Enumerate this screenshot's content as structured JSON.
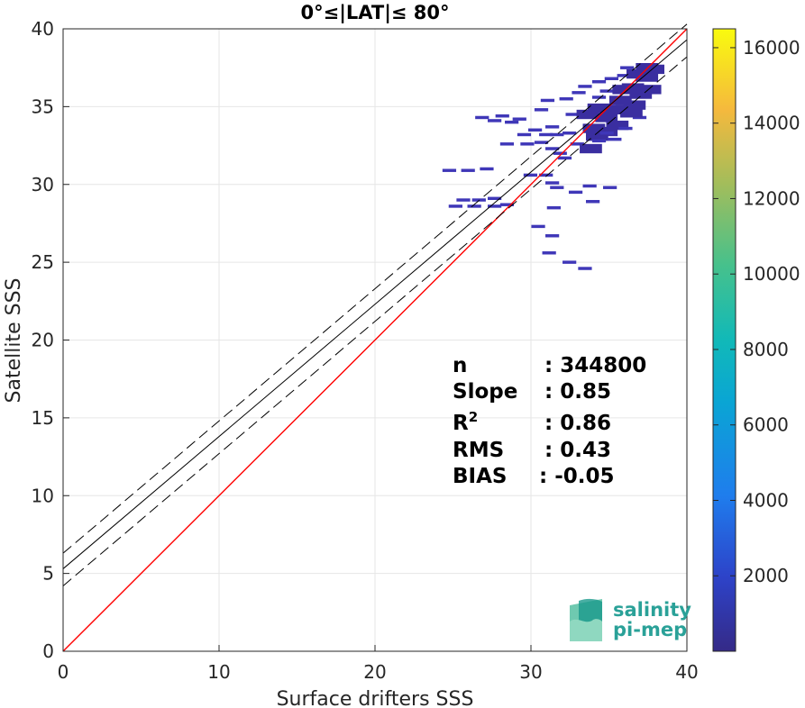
{
  "chart_data": {
    "type": "heatmap",
    "title": "0°≤|LAT|≤ 80°",
    "xlabel": "Surface drifters SSS",
    "ylabel": "Satellite SSS",
    "xlim": [
      0,
      40
    ],
    "ylim": [
      0,
      40
    ],
    "xticks": [
      "0",
      "10",
      "20",
      "30",
      "40"
    ],
    "yticks": [
      "0",
      "5",
      "10",
      "15",
      "20",
      "25",
      "30",
      "35",
      "40"
    ],
    "grid": true,
    "lines": [
      {
        "role": "identity",
        "color": "#ff0000",
        "style": "solid",
        "slope": 1.0,
        "intercept": 0
      },
      {
        "role": "regression fit",
        "color": "#000000",
        "style": "solid",
        "slope": 0.85,
        "intercept": 5.3
      },
      {
        "role": "fit + std",
        "color": "#000000",
        "style": "dashed",
        "slope": 0.85,
        "intercept": 6.3
      },
      {
        "role": "fit - std",
        "color": "#000000",
        "style": "dashed",
        "slope": 0.85,
        "intercept": 4.2
      }
    ],
    "colorbar": {
      "min": 0,
      "max": 16500,
      "ticks": [
        "2000",
        "4000",
        "6000",
        "8000",
        "10000",
        "12000",
        "14000",
        "16000"
      ],
      "colormap": "parula"
    },
    "stats": [
      {
        "label": "n",
        "sep": ":",
        "value": "344800"
      },
      {
        "label": "Slope",
        "sep": ":",
        "value": "0.85"
      },
      {
        "label": "R",
        "sup": "2",
        "sep": ":",
        "value": "0.86"
      },
      {
        "label": "RMS",
        "sep": ":",
        "value": "0.43"
      },
      {
        "label": "BIAS",
        "sep": ":",
        "value": "-0.05"
      }
    ],
    "density_cells": [
      [
        25,
        28.6
      ],
      [
        26.2,
        28.6
      ],
      [
        27.5,
        28.6
      ],
      [
        28.3,
        28.7
      ],
      [
        25.5,
        29.0
      ],
      [
        26.5,
        29.0
      ],
      [
        27.5,
        29.1
      ],
      [
        24.6,
        30.9
      ],
      [
        25.8,
        30.9
      ],
      [
        27.0,
        31.0
      ],
      [
        29.8,
        30.6
      ],
      [
        30.8,
        30.6
      ],
      [
        31.2,
        30.1
      ],
      [
        31.5,
        29.8
      ],
      [
        32.7,
        29.5
      ],
      [
        33.6,
        29.9
      ],
      [
        34.9,
        29.8
      ],
      [
        30.3,
        27.3
      ],
      [
        31.2,
        26.7
      ],
      [
        31.0,
        25.6
      ],
      [
        32.3,
        25.0
      ],
      [
        33.3,
        24.6
      ],
      [
        31.3,
        28.5
      ],
      [
        33.8,
        28.9
      ],
      [
        26.7,
        34.3
      ],
      [
        27.5,
        34.1
      ],
      [
        28.6,
        34.0
      ],
      [
        29.4,
        33.2
      ],
      [
        30.1,
        33.5
      ],
      [
        30.5,
        32.7
      ],
      [
        29.6,
        32.6
      ],
      [
        28.3,
        32.6
      ],
      [
        30.5,
        34.8
      ],
      [
        30.9,
        35.4
      ],
      [
        31.2,
        33.7
      ],
      [
        31.2,
        32.3
      ],
      [
        32.1,
        35.5
      ],
      [
        32.5,
        34.5
      ],
      [
        32.3,
        33.3
      ],
      [
        32.9,
        35.9
      ],
      [
        33.2,
        34.7
      ],
      [
        33.3,
        36.3
      ],
      [
        33.6,
        33.8
      ],
      [
        33.9,
        35.1
      ],
      [
        34.2,
        36.6
      ],
      [
        34.2,
        35.6
      ],
      [
        34.4,
        34.5
      ],
      [
        34.7,
        36.0
      ],
      [
        34.8,
        35.0
      ],
      [
        35.0,
        36.8
      ],
      [
        35.1,
        34.0
      ],
      [
        35.3,
        35.6
      ],
      [
        35.5,
        36.3
      ],
      [
        35.7,
        35.0
      ],
      [
        35.8,
        37.0
      ],
      [
        35.9,
        33.6
      ],
      [
        36.1,
        36.4
      ],
      [
        36.2,
        35.3
      ],
      [
        36.4,
        37.3
      ],
      [
        36.6,
        36.0
      ],
      [
        36.8,
        34.3
      ],
      [
        37.0,
        37.1
      ],
      [
        37.2,
        36.3
      ],
      [
        37.4,
        37.6
      ],
      [
        36.0,
        37.5
      ],
      [
        37.0,
        37.7
      ],
      [
        33.8,
        33.3
      ],
      [
        34.4,
        33.6
      ],
      [
        32.8,
        32.6
      ],
      [
        31.7,
        32.0
      ],
      [
        32.0,
        31.7
      ],
      [
        33.4,
        32.5
      ],
      [
        34.2,
        32.8
      ],
      [
        34.7,
        33.3
      ],
      [
        35.2,
        32.9
      ],
      [
        36.0,
        34.8
      ],
      [
        31.5,
        33.2
      ],
      [
        30.8,
        33.2
      ],
      [
        29.1,
        34.2
      ],
      [
        28.0,
        34.4
      ]
    ]
  },
  "logo": {
    "line1": "salinity",
    "line2": "pi-mep"
  }
}
